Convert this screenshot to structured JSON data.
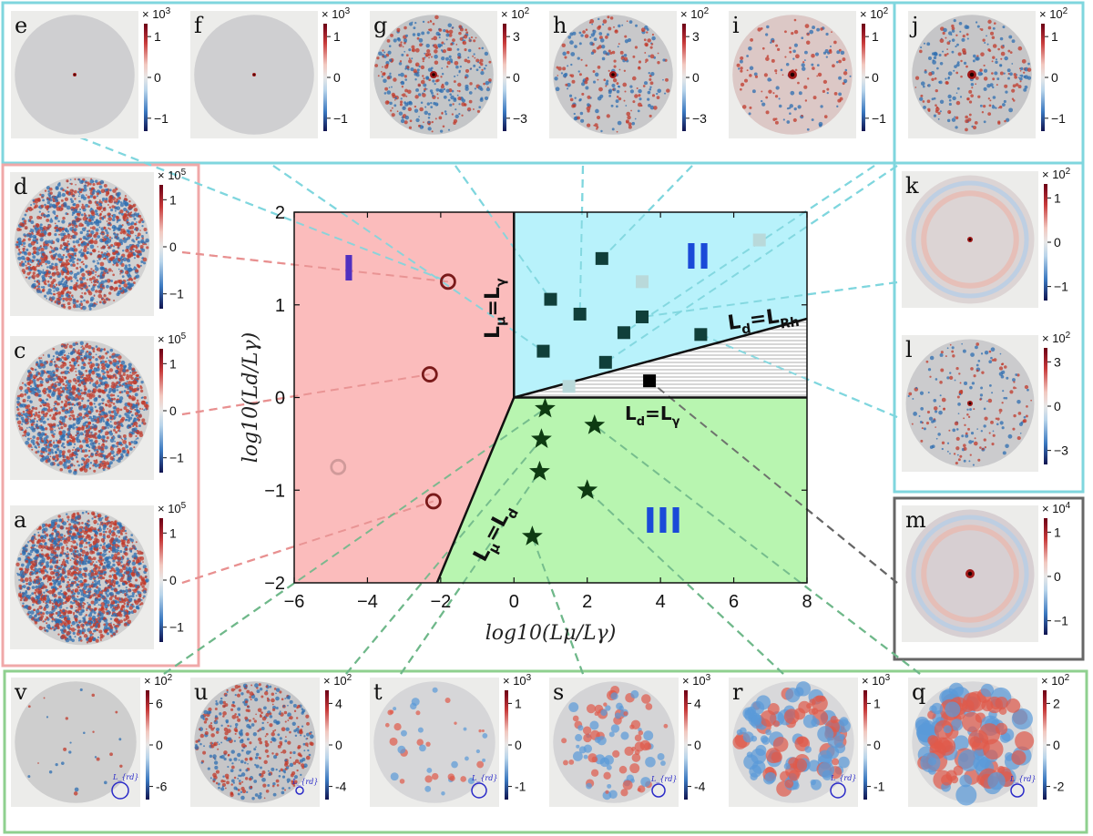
{
  "colors": {
    "cyan_frame": "#7fd6de",
    "red_frame": "#f0a8a8",
    "green_frame": "#8fd08f",
    "gray_frame": "#666666",
    "region_I": "#fbbcbc",
    "region_II": "#b8f2fb",
    "region_III": "#b8f5b0",
    "label_I": "#5030c0",
    "label_II_III": "#1a4ad8",
    "marker_square": "#103f3a",
    "marker_star": "#0e3b12",
    "marker_circle": "#7a1a1a",
    "marker_circle_faded": "#d09a9a"
  },
  "chart_data": {
    "type": "scatter",
    "xlabel": "log10(Lμ/Lγ)",
    "ylabel": "log10(Ld/Lγ)",
    "xlim": [
      -6,
      8
    ],
    "ylim": [
      -2,
      2
    ],
    "xticks": [
      "-6",
      "-4",
      "-2",
      "0",
      "2",
      "4",
      "6",
      "8"
    ],
    "yticks": [
      "-2",
      "-1",
      "0",
      "1",
      "2"
    ],
    "regions": [
      {
        "label": "I",
        "polygon": [
          [
            -6,
            -2
          ],
          [
            -2.1,
            -2
          ],
          [
            0,
            0
          ],
          [
            0,
            2
          ],
          [
            -6,
            2
          ]
        ]
      },
      {
        "label": "II",
        "polygon": [
          [
            0,
            0
          ],
          [
            8,
            0.85
          ],
          [
            8,
            2
          ],
          [
            0,
            2
          ]
        ]
      },
      {
        "label": "III",
        "polygon": [
          [
            0,
            0
          ],
          [
            8,
            0
          ],
          [
            8,
            -2
          ],
          [
            -2.1,
            -2
          ]
        ]
      }
    ],
    "hatched_region": [
      [
        0,
        0
      ],
      [
        8,
        0.85
      ],
      [
        8,
        0
      ]
    ],
    "boundaries": [
      {
        "label": "L_μ=L_γ",
        "points": [
          [
            0,
            0
          ],
          [
            0,
            2
          ]
        ]
      },
      {
        "label": "L_μ=L_d",
        "points": [
          [
            0,
            0
          ],
          [
            -2.1,
            -2
          ]
        ]
      },
      {
        "label": "L_d=L_Rh",
        "points": [
          [
            0,
            0
          ],
          [
            8,
            0.85
          ]
        ]
      },
      {
        "label": "L_d=L_γ",
        "points": [
          [
            0,
            0
          ],
          [
            8,
            0
          ]
        ]
      }
    ],
    "series": [
      {
        "marker": "circle",
        "points": [
          [
            -2.2,
            -1.12
          ],
          [
            -2.3,
            0.25
          ],
          [
            -1.8,
            1.25
          ]
        ]
      },
      {
        "marker": "circle-faded",
        "points": [
          [
            -4.8,
            -0.75
          ]
        ]
      },
      {
        "marker": "square",
        "points": [
          [
            0.8,
            0.5
          ],
          [
            1.0,
            1.06
          ],
          [
            1.8,
            0.9
          ],
          [
            2.4,
            1.5
          ],
          [
            2.5,
            0.38
          ],
          [
            3.0,
            0.7
          ],
          [
            3.5,
            0.87
          ],
          [
            5.1,
            0.68
          ]
        ]
      },
      {
        "marker": "square-faded",
        "points": [
          [
            6.7,
            1.7
          ],
          [
            3.5,
            1.25
          ],
          [
            1.5,
            0.12
          ]
        ]
      },
      {
        "marker": "square-black",
        "points": [
          [
            3.7,
            0.18
          ]
        ]
      },
      {
        "marker": "star",
        "points": [
          [
            0.85,
            -0.12
          ],
          [
            2.2,
            -0.3
          ],
          [
            0.75,
            -0.45
          ],
          [
            0.7,
            -0.8
          ],
          [
            2.0,
            -1.0
          ],
          [
            0.5,
            -1.5
          ]
        ]
      }
    ]
  },
  "panels": {
    "e": {
      "letter": "e",
      "scale": "× 10",
      "exp": "3",
      "ticks": [
        "1",
        "0",
        "−1"
      ]
    },
    "f": {
      "letter": "f",
      "scale": "× 10",
      "exp": "3",
      "ticks": [
        "1",
        "0",
        "−1"
      ]
    },
    "g": {
      "letter": "g",
      "scale": "× 10",
      "exp": "2",
      "ticks": [
        "3",
        "0",
        "−3"
      ]
    },
    "h": {
      "letter": "h",
      "scale": "× 10",
      "exp": "2",
      "ticks": [
        "3",
        "0",
        "−3"
      ]
    },
    "i": {
      "letter": "i",
      "scale": "× 10",
      "exp": "2",
      "ticks": [
        "1",
        "0",
        "−1"
      ]
    },
    "j": {
      "letter": "j",
      "scale": "× 10",
      "exp": "2",
      "ticks": [
        "1",
        "0",
        "−1"
      ]
    },
    "k": {
      "letter": "k",
      "scale": "× 10",
      "exp": "2",
      "ticks": [
        "1",
        "0",
        "−1"
      ]
    },
    "l": {
      "letter": "l",
      "scale": "× 10",
      "exp": "2",
      "ticks": [
        "3",
        "0",
        "−3"
      ]
    },
    "m": {
      "letter": "m",
      "scale": "× 10",
      "exp": "4",
      "ticks": [
        "1",
        "0",
        "−1"
      ]
    },
    "d": {
      "letter": "d",
      "scale": "× 10",
      "exp": "5",
      "ticks": [
        "1",
        "0",
        "−1"
      ]
    },
    "c": {
      "letter": "c",
      "scale": "× 10",
      "exp": "5",
      "ticks": [
        "1",
        "0",
        "−1"
      ]
    },
    "a": {
      "letter": "a",
      "scale": "× 10",
      "exp": "5",
      "ticks": [
        "1",
        "0",
        "−1"
      ]
    },
    "v": {
      "letter": "v",
      "scale": "× 10",
      "exp": "2",
      "ticks": [
        "6",
        "0",
        "-6"
      ]
    },
    "u": {
      "letter": "u",
      "scale": "× 10",
      "exp": "2",
      "ticks": [
        "4",
        "0",
        "-4"
      ]
    },
    "t": {
      "letter": "t",
      "scale": "× 10",
      "exp": "3",
      "ticks": [
        "1",
        "0",
        "-1"
      ]
    },
    "s": {
      "letter": "s",
      "scale": "× 10",
      "exp": "3",
      "ticks": [
        "4",
        "0",
        "-4"
      ]
    },
    "r": {
      "letter": "r",
      "scale": "× 10",
      "exp": "3",
      "ticks": [
        "1",
        "0",
        "-1"
      ]
    },
    "q": {
      "letter": "q",
      "scale": "× 10",
      "exp": "2",
      "ticks": [
        "2",
        "0",
        "-2"
      ]
    }
  },
  "lrd_label": "L_{rd}",
  "region_labels": {
    "I": "I",
    "II": "II",
    "III": "III"
  },
  "boundary_labels": {
    "mu_gamma": {
      "L": "L",
      "eq": "=L",
      "sub1": "μ",
      "sub2": "γ"
    },
    "mu_d": {
      "L": "L",
      "eq": "=L",
      "sub1": "μ",
      "sub2": "d"
    },
    "d_rh": {
      "L": "L",
      "eq": "=L",
      "sub1": "d",
      "sub2": "Rh"
    },
    "d_gamma": {
      "L": "L",
      "eq": "=L",
      "sub1": "d",
      "sub2": "γ"
    }
  }
}
